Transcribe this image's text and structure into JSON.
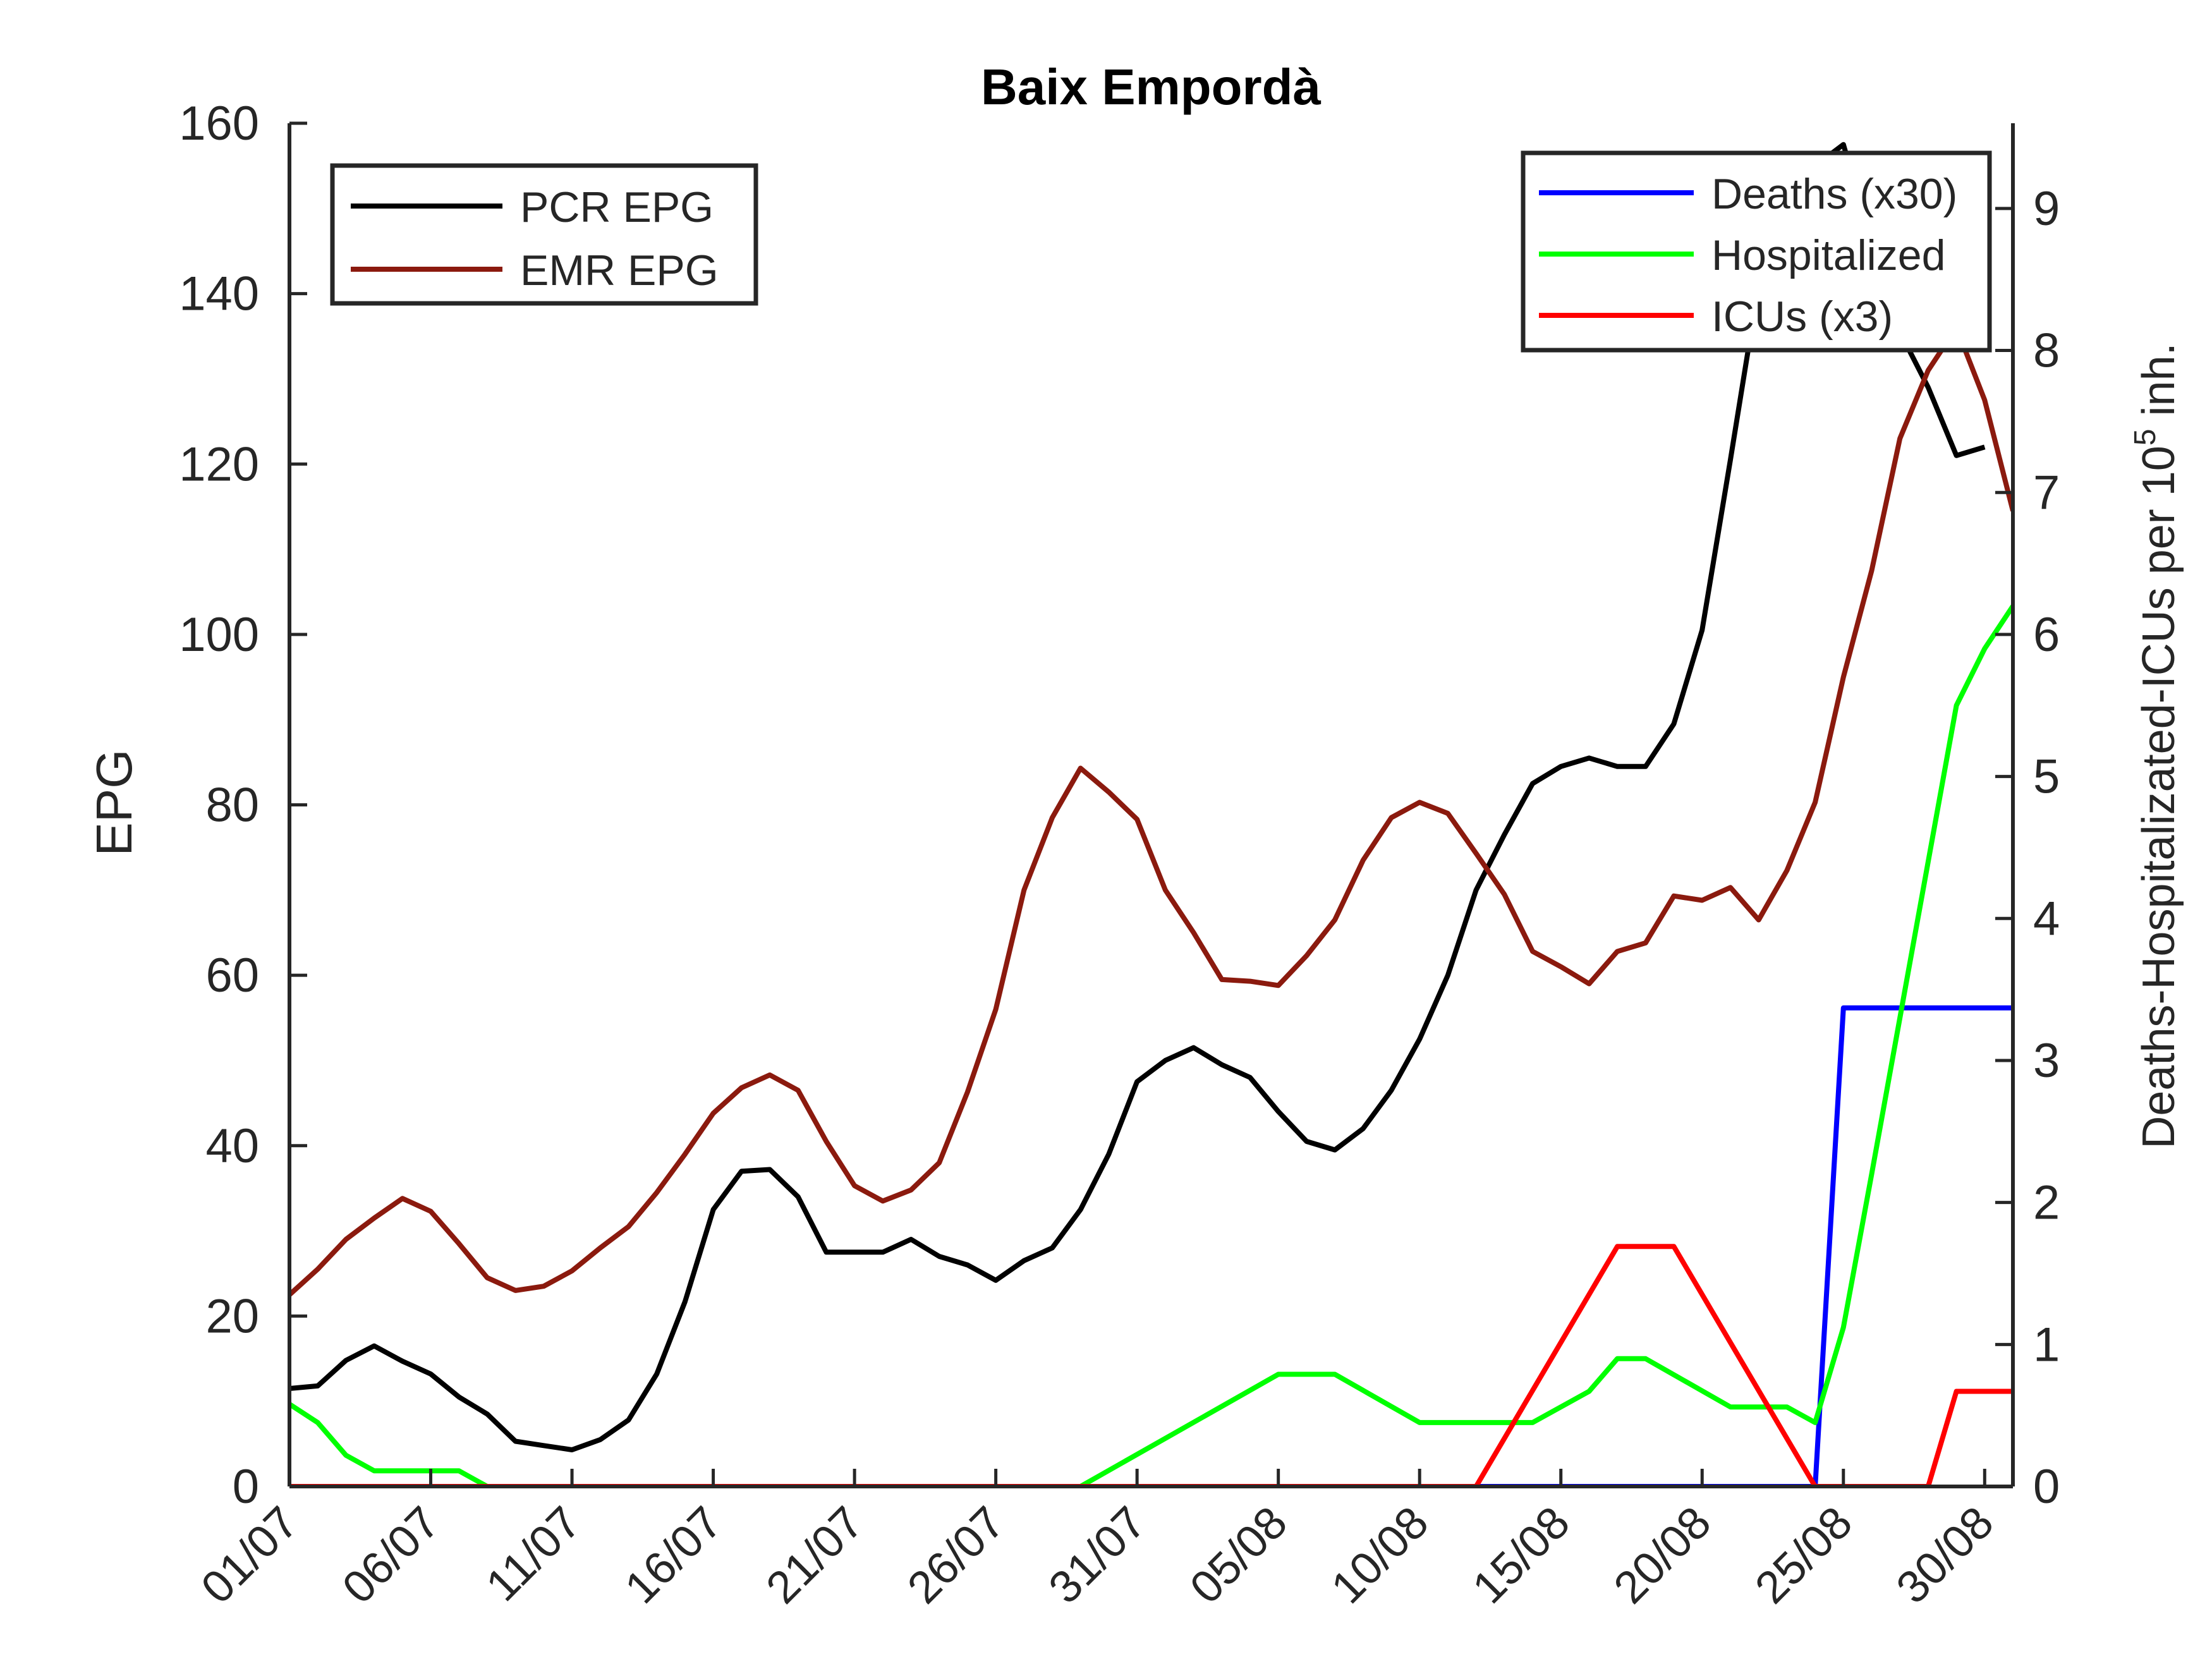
{
  "chart_data": {
    "type": "line",
    "title": "Baix Empordà",
    "ylabel_left": "EPG",
    "ylabel_right_parts": [
      "Deaths-Hospitalizated-ICUs per 10",
      "5",
      " inh."
    ],
    "xlim": [
      0,
      61
    ],
    "ylim_left": [
      0,
      160
    ],
    "ylim_right": [
      0,
      9.6
    ],
    "xticks": [
      0,
      5,
      10,
      15,
      20,
      25,
      30,
      35,
      40,
      45,
      50,
      55,
      60
    ],
    "xtick_labels": [
      "01/07",
      "06/07",
      "11/07",
      "16/07",
      "21/07",
      "26/07",
      "31/07",
      "05/08",
      "10/08",
      "15/08",
      "20/08",
      "25/08",
      "30/08"
    ],
    "yticks_left": [
      0,
      20,
      40,
      60,
      80,
      100,
      120,
      140,
      160
    ],
    "yticks_right": [
      0,
      1,
      2,
      3,
      4,
      5,
      6,
      7,
      8,
      9
    ],
    "series_left": [
      {
        "name": "PCR EPG",
        "color": "#000000",
        "values": [
          11.5,
          11.8,
          14.8,
          16.5,
          14.7,
          13.2,
          10.5,
          8.5,
          5.3,
          4.8,
          4.3,
          5.5,
          7.8,
          13.2,
          21.7,
          32.5,
          37.0,
          37.2,
          34.0,
          27.5,
          27.5,
          27.5,
          29.0,
          27.0,
          26.0,
          24.2,
          26.5,
          28.0,
          32.5,
          39.0,
          47.5,
          50.0,
          51.5,
          49.5,
          48.0,
          44.0,
          40.5,
          39.5,
          42.0,
          46.5,
          52.5,
          60.0,
          70.0,
          76.5,
          82.5,
          84.5,
          85.5,
          84.5,
          84.5,
          89.5,
          100.5,
          120.5,
          141.0,
          151.5,
          155.0,
          157.5,
          146.0,
          135.5,
          129.0,
          121.0,
          122.0
        ]
      },
      {
        "name": "EMR EPG",
        "color": "#8b1a0e",
        "values": [
          22.5,
          25.5,
          29.0,
          31.5,
          33.8,
          32.3,
          28.5,
          24.5,
          23.0,
          23.5,
          25.3,
          28.0,
          30.5,
          34.5,
          39.0,
          43.8,
          46.8,
          48.3,
          46.5,
          40.5,
          35.3,
          33.5,
          34.8,
          38.0,
          46.3,
          56.0,
          70.0,
          78.5,
          84.3,
          81.5,
          78.3,
          70.0,
          65.0,
          59.5,
          59.3,
          58.8,
          62.3,
          66.5,
          73.5,
          78.5,
          80.3,
          79.0,
          74.3,
          69.5,
          62.8,
          61.0,
          59.0,
          62.8,
          63.8,
          69.3,
          68.8,
          70.3,
          66.5,
          72.3,
          80.3,
          95.0,
          107.5,
          123.0,
          131.0,
          136.0,
          127.5,
          114.5
        ]
      }
    ],
    "series_right": [
      {
        "name": "Deaths (x30)",
        "color": "#0000ff",
        "points": [
          [
            42,
            0
          ],
          [
            54,
            0
          ],
          [
            55,
            3.37
          ],
          [
            61,
            3.37
          ]
        ]
      },
      {
        "name": "Hospitalized",
        "color": "#00ff00",
        "points": [
          [
            0,
            0.58
          ],
          [
            1,
            0.45
          ],
          [
            2,
            0.22
          ],
          [
            3,
            0.11
          ],
          [
            4,
            0.11
          ],
          [
            5,
            0.11
          ],
          [
            6,
            0.11
          ],
          [
            7,
            0
          ],
          [
            28,
            0
          ],
          [
            35,
            0.79
          ],
          [
            37,
            0.79
          ],
          [
            40,
            0.45
          ],
          [
            44,
            0.45
          ],
          [
            46,
            0.67
          ],
          [
            47,
            0.9
          ],
          [
            48,
            0.9
          ],
          [
            51,
            0.56
          ],
          [
            53,
            0.56
          ],
          [
            54,
            0.45
          ],
          [
            55,
            1.12
          ],
          [
            56,
            2.2
          ],
          [
            57,
            3.3
          ],
          [
            58,
            4.4
          ],
          [
            59,
            5.5
          ],
          [
            60,
            5.9
          ],
          [
            61,
            6.2
          ]
        ]
      },
      {
        "name": "ICUs (x3)",
        "color": "#ff0000",
        "points": [
          [
            0,
            0
          ],
          [
            42,
            0
          ],
          [
            47,
            1.69
          ],
          [
            49,
            1.69
          ],
          [
            54,
            0
          ],
          [
            58,
            0
          ],
          [
            59,
            0.67
          ],
          [
            61,
            0.67
          ]
        ]
      }
    ],
    "legend_left_position": "top-left",
    "legend_right_position": "top-right",
    "grid": false
  }
}
